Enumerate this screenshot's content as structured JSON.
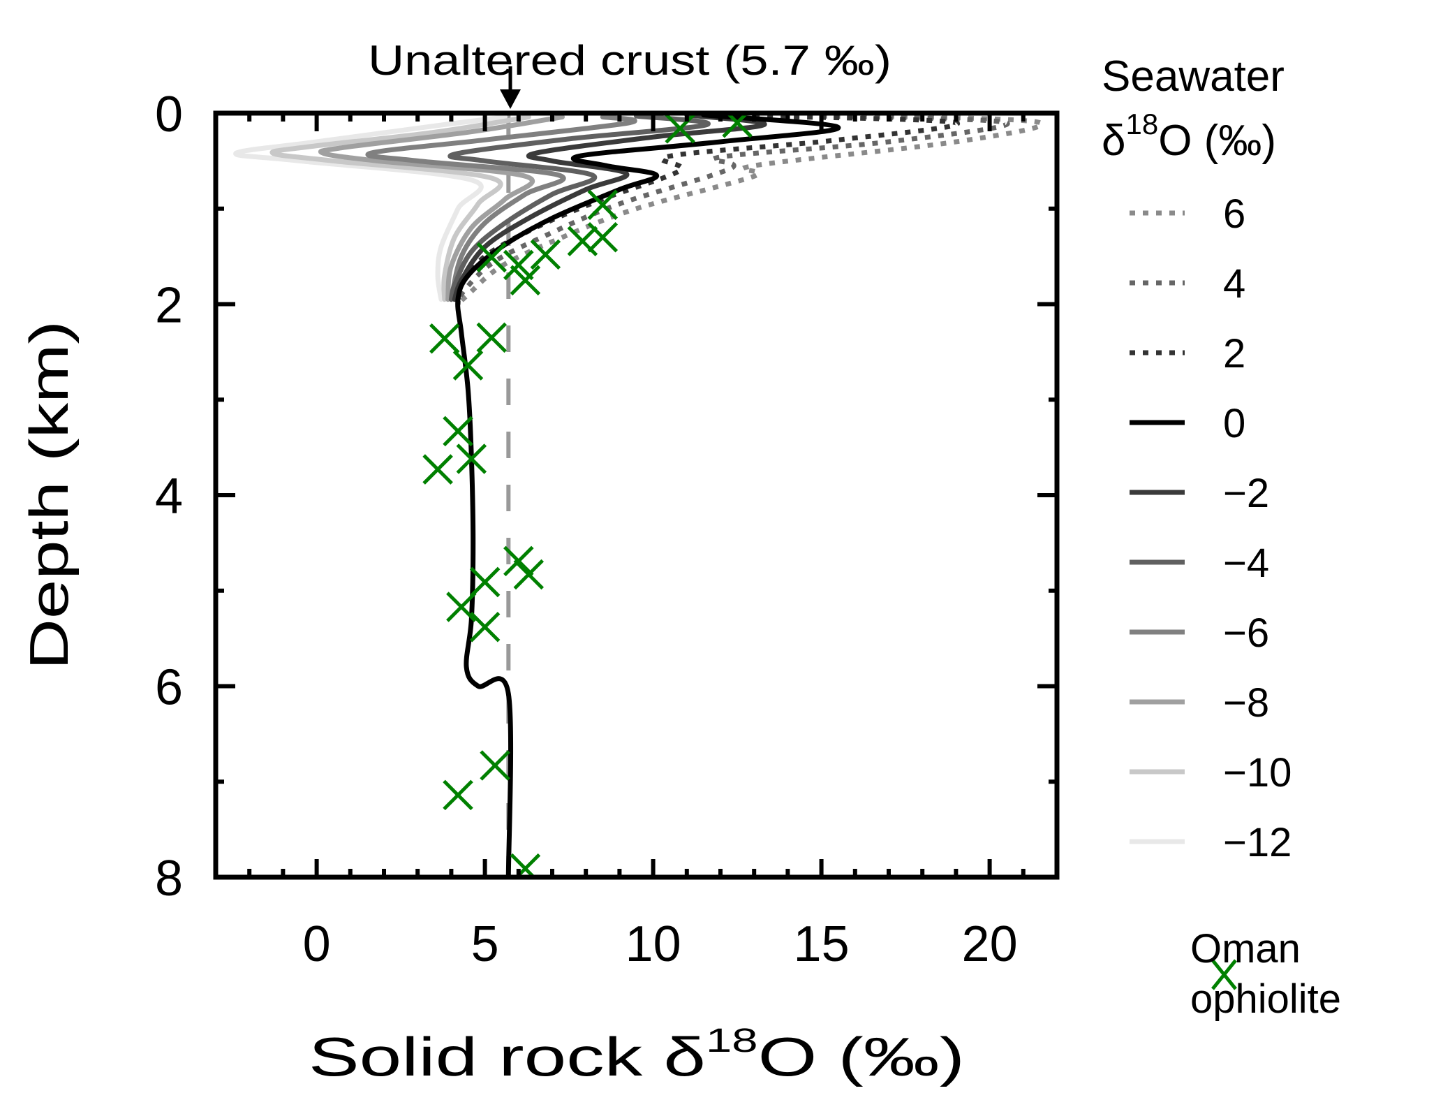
{
  "chart_data": {
    "type": "line",
    "title": "",
    "annotation": {
      "text": "Unaltered crust (5.7 ‰)",
      "x": 5.7
    },
    "xlabel": {
      "main": "Solid rock δ",
      "superscript": "18",
      "suffix": "O (‰)"
    },
    "ylabel": "Depth (km)",
    "xlim": [
      -3,
      22
    ],
    "ylim": [
      0,
      8
    ],
    "y_inverted": true,
    "x_ticks": [
      0,
      5,
      10,
      15,
      20
    ],
    "x_tick_labels": [
      "0",
      "5",
      "10",
      "15",
      "20"
    ],
    "x_minor_step": 1,
    "y_ticks": [
      0,
      2,
      4,
      6,
      8
    ],
    "y_tick_labels": [
      "0",
      "2",
      "4",
      "6",
      "8"
    ],
    "y_minor_step": 1,
    "grid": false,
    "legend": {
      "placement": "right",
      "title_line1": "Seawater",
      "title_line2_main": "δ",
      "title_line2_sup": "18",
      "title_line2_suffix": "O (‰)",
      "marker_label_line1": "Oman",
      "marker_label_line2": "ophiolite"
    },
    "reference_line": {
      "name": "Unaltered crust",
      "x": 5.7,
      "color": "#999999",
      "style": "dashed"
    },
    "series": [
      {
        "name": "6",
        "label": "6",
        "color": "#8a8a8a",
        "style": "dotted",
        "points": [
          [
            17,
            0.03
          ],
          [
            21.5,
            0.1
          ],
          [
            19,
            0.3
          ],
          [
            13,
            0.55
          ],
          [
            13,
            0.66
          ],
          [
            9.5,
            1.0
          ],
          [
            7.3,
            1.3
          ],
          [
            5.5,
            1.6
          ],
          [
            4.5,
            1.9
          ],
          [
            4.2,
            2.0
          ]
        ]
      },
      {
        "name": "4",
        "label": "4",
        "color": "#666666",
        "style": "dotted",
        "points": [
          [
            15,
            0.03
          ],
          [
            20.5,
            0.1
          ],
          [
            17,
            0.3
          ],
          [
            12,
            0.46
          ],
          [
            12.3,
            0.58
          ],
          [
            9,
            0.95
          ],
          [
            7,
            1.25
          ],
          [
            5.3,
            1.55
          ],
          [
            4.4,
            1.85
          ],
          [
            4.2,
            2.0
          ]
        ]
      },
      {
        "name": "2",
        "label": "2",
        "color": "#333333",
        "style": "dotted",
        "points": [
          [
            13,
            0.03
          ],
          [
            19,
            0.1
          ],
          [
            15.5,
            0.28
          ],
          [
            10.5,
            0.45
          ],
          [
            10.8,
            0.6
          ],
          [
            8.5,
            0.9
          ],
          [
            6.5,
            1.2
          ],
          [
            5,
            1.5
          ],
          [
            4.3,
            1.8
          ],
          [
            4.2,
            2.0
          ]
        ]
      },
      {
        "name": "-12",
        "label": "−12",
        "color": "#e8e8e8",
        "style": "solid",
        "points": [
          [
            5.6,
            0.04
          ],
          [
            3.8,
            0.12
          ],
          [
            0,
            0.3
          ],
          [
            -2.4,
            0.42
          ],
          [
            -0.5,
            0.5
          ],
          [
            4.6,
            0.7
          ],
          [
            4.2,
            1.0
          ],
          [
            3.7,
            1.4
          ],
          [
            3.6,
            1.7
          ],
          [
            3.7,
            1.95
          ]
        ]
      },
      {
        "name": "-10",
        "label": "−10",
        "color": "#c8c8c8",
        "style": "solid",
        "points": [
          [
            6.3,
            0.04
          ],
          [
            3.5,
            0.2
          ],
          [
            -0.2,
            0.35
          ],
          [
            -1.3,
            0.42
          ],
          [
            0.5,
            0.5
          ],
          [
            5.2,
            0.68
          ],
          [
            4.8,
            0.95
          ],
          [
            4.1,
            1.3
          ],
          [
            3.8,
            1.7
          ],
          [
            3.8,
            1.95
          ]
        ]
      },
      {
        "name": "-8",
        "label": "−8",
        "color": "#a0a0a0",
        "style": "solid",
        "points": [
          [
            7.3,
            0.04
          ],
          [
            4.5,
            0.2
          ],
          [
            0.8,
            0.36
          ],
          [
            0.2,
            0.42
          ],
          [
            1.8,
            0.5
          ],
          [
            6.2,
            0.66
          ],
          [
            5.6,
            0.9
          ],
          [
            4.6,
            1.2
          ],
          [
            4.0,
            1.6
          ],
          [
            3.9,
            1.95
          ]
        ]
      },
      {
        "name": "-6",
        "label": "−6",
        "color": "#808080",
        "style": "solid",
        "points": [
          [
            8.5,
            0.04
          ],
          [
            9.3,
            0.1
          ],
          [
            5,
            0.28
          ],
          [
            1.6,
            0.42
          ],
          [
            3,
            0.5
          ],
          [
            7.2,
            0.65
          ],
          [
            6.2,
            0.85
          ],
          [
            5,
            1.15
          ],
          [
            4.3,
            1.5
          ],
          [
            4.0,
            1.95
          ]
        ]
      },
      {
        "name": "-4",
        "label": "−4",
        "color": "#606060",
        "style": "solid",
        "points": [
          [
            9.5,
            0.03
          ],
          [
            11.6,
            0.12
          ],
          [
            7.5,
            0.27
          ],
          [
            4.1,
            0.43
          ],
          [
            5,
            0.5
          ],
          [
            8.2,
            0.65
          ],
          [
            7,
            0.85
          ],
          [
            5.6,
            1.15
          ],
          [
            4.6,
            1.45
          ],
          [
            4.1,
            1.8
          ],
          [
            4.0,
            1.95
          ]
        ]
      },
      {
        "name": "-2",
        "label": "−2",
        "color": "#3a3a3a",
        "style": "solid",
        "points": [
          [
            11,
            0.02
          ],
          [
            13.3,
            0.12
          ],
          [
            10,
            0.25
          ],
          [
            6.5,
            0.42
          ],
          [
            7,
            0.5
          ],
          [
            9.2,
            0.63
          ],
          [
            8,
            0.8
          ],
          [
            6.3,
            1.1
          ],
          [
            5,
            1.4
          ],
          [
            4.3,
            1.75
          ],
          [
            4.1,
            1.95
          ]
        ]
      },
      {
        "name": "0",
        "label": "0",
        "color": "#000000",
        "style": "solid",
        "points": [
          [
            11.5,
            0.02
          ],
          [
            15.5,
            0.15
          ],
          [
            12,
            0.3
          ],
          [
            7.8,
            0.45
          ],
          [
            8.6,
            0.55
          ],
          [
            10.1,
            0.65
          ],
          [
            9,
            0.8
          ],
          [
            7,
            1.1
          ],
          [
            5.5,
            1.4
          ],
          [
            4.5,
            1.7
          ],
          [
            4.2,
            1.95
          ],
          [
            4.3,
            2.3
          ],
          [
            4.5,
            2.9
          ],
          [
            4.6,
            3.6
          ],
          [
            4.65,
            4.5
          ],
          [
            4.6,
            5.3
          ],
          [
            4.45,
            5.8
          ],
          [
            4.8,
            6.0
          ],
          [
            5.7,
            6.08
          ],
          [
            5.7,
            8
          ]
        ]
      }
    ],
    "legend_order": [
      "6",
      "4",
      "2",
      "0",
      "-2",
      "-4",
      "-6",
      "-8",
      "-10",
      "-12"
    ],
    "markers": {
      "name": "Oman ophiolite",
      "color": "#008000",
      "symbol": "x",
      "points": [
        [
          10.8,
          0.16
        ],
        [
          12.5,
          0.1
        ],
        [
          8.5,
          0.96
        ],
        [
          8.5,
          1.3
        ],
        [
          7.9,
          1.34
        ],
        [
          6.8,
          1.48
        ],
        [
          5.2,
          1.51
        ],
        [
          6.0,
          1.59
        ],
        [
          6.2,
          1.75
        ],
        [
          3.8,
          2.36
        ],
        [
          5.2,
          2.35
        ],
        [
          4.5,
          2.64
        ],
        [
          4.2,
          3.33
        ],
        [
          4.6,
          3.62
        ],
        [
          3.6,
          3.73
        ],
        [
          6.0,
          4.69
        ],
        [
          6.3,
          4.83
        ],
        [
          5.0,
          4.91
        ],
        [
          4.3,
          5.17
        ],
        [
          5.0,
          5.38
        ],
        [
          5.3,
          6.83
        ],
        [
          4.2,
          7.14
        ],
        [
          6.2,
          7.91
        ]
      ]
    }
  }
}
